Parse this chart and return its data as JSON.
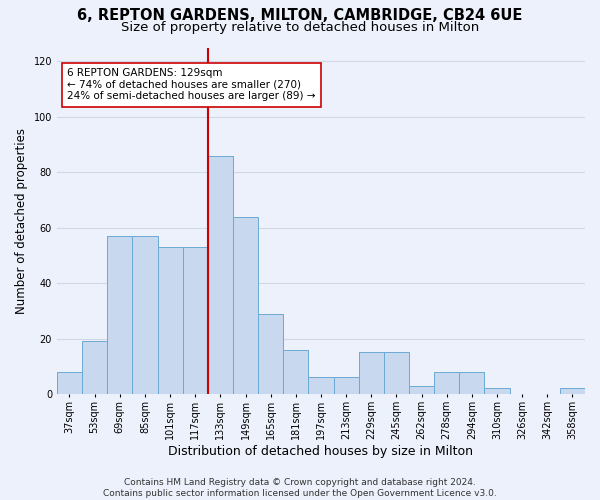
{
  "title_line1": "6, REPTON GARDENS, MILTON, CAMBRIDGE, CB24 6UE",
  "title_line2": "Size of property relative to detached houses in Milton",
  "xlabel": "Distribution of detached houses by size in Milton",
  "ylabel": "Number of detached properties",
  "categories": [
    "37sqm",
    "53sqm",
    "69sqm",
    "85sqm",
    "101sqm",
    "117sqm",
    "133sqm",
    "149sqm",
    "165sqm",
    "181sqm",
    "197sqm",
    "213sqm",
    "229sqm",
    "245sqm",
    "262sqm",
    "278sqm",
    "294sqm",
    "310sqm",
    "326sqm",
    "342sqm",
    "358sqm"
  ],
  "values": [
    8,
    19,
    57,
    57,
    53,
    53,
    86,
    64,
    29,
    16,
    6,
    6,
    15,
    15,
    3,
    8,
    8,
    2,
    0,
    0,
    2
  ],
  "bar_color": "#c8d8ef",
  "bar_edge_color": "#6aaad4",
  "red_line_x": 6,
  "annotation_text1": "6 REPTON GARDENS: 129sqm",
  "annotation_text2": "← 74% of detached houses are smaller (270)",
  "annotation_text3": "24% of semi-detached houses are larger (89) →",
  "red_line_color": "#cc0000",
  "annotation_box_facecolor": "#ffffff",
  "annotation_box_edgecolor": "#cc0000",
  "ylim": [
    0,
    125
  ],
  "yticks": [
    0,
    20,
    40,
    60,
    80,
    100,
    120
  ],
  "footer_line1": "Contains HM Land Registry data © Crown copyright and database right 2024.",
  "footer_line2": "Contains public sector information licensed under the Open Government Licence v3.0.",
  "background_color": "#edf1fb",
  "grid_color": "#d0d8e8",
  "title_fontsize": 10.5,
  "subtitle_fontsize": 9.5,
  "ylabel_fontsize": 8.5,
  "xlabel_fontsize": 9,
  "tick_fontsize": 7,
  "annotation_fontsize": 7.5,
  "footer_fontsize": 6.5
}
